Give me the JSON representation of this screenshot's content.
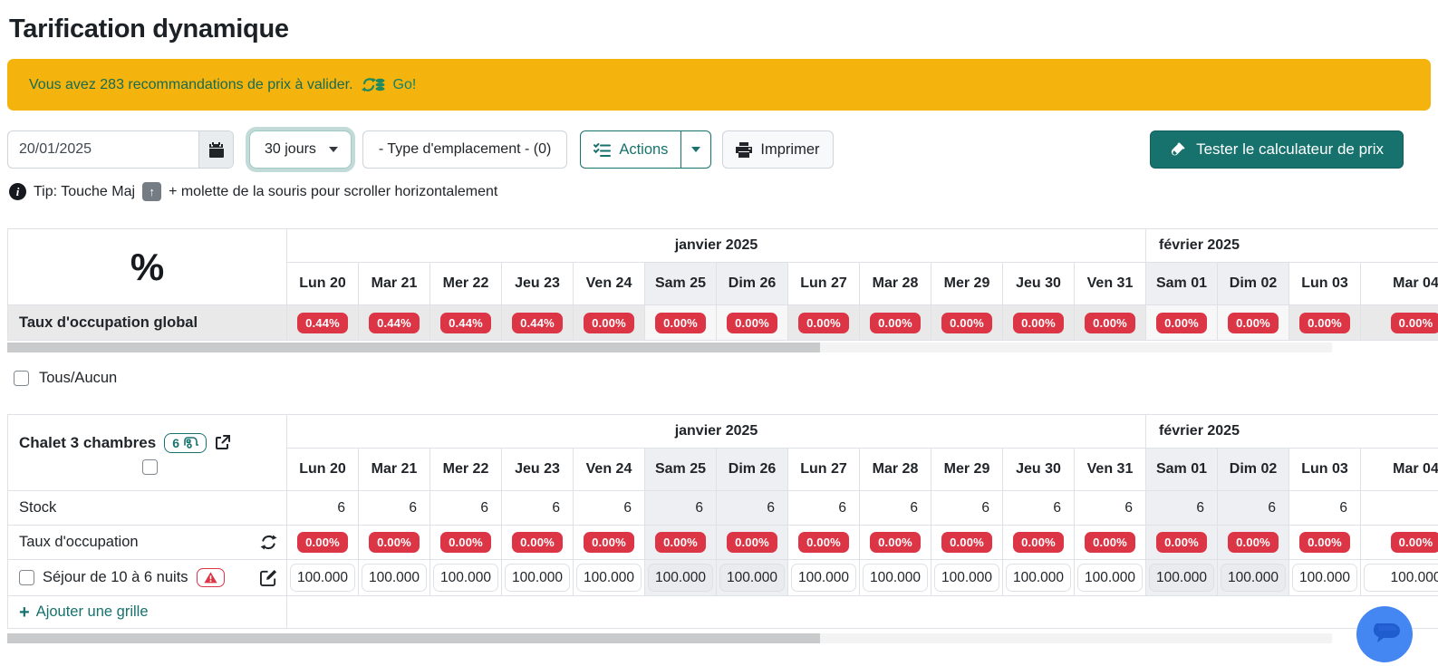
{
  "page": {
    "title": "Tarification dynamique"
  },
  "banner": {
    "text": "Vous avez 283 recommandations de prix à valider.",
    "link_label": "Go!"
  },
  "toolbar": {
    "date_value": "20/01/2025",
    "duration_value": "30 jours",
    "type_filter_label": "- Type d'emplacement - (0)",
    "actions_label": "Actions",
    "print_label": "Imprimer",
    "test_button_label": "Tester le calculateur de prix"
  },
  "tip": {
    "prefix": "Tip: Touche Maj",
    "key": "↑",
    "suffix": "+ molette de la souris pour scroller horizontalement"
  },
  "calendar": {
    "months": [
      {
        "label": "janvier 2025",
        "span": 12
      },
      {
        "label": "février 2025",
        "span": 4
      }
    ],
    "days": [
      {
        "label": "Lun 20",
        "weekend": false
      },
      {
        "label": "Mar 21",
        "weekend": false
      },
      {
        "label": "Mer 22",
        "weekend": false
      },
      {
        "label": "Jeu 23",
        "weekend": false
      },
      {
        "label": "Ven 24",
        "weekend": false
      },
      {
        "label": "Sam 25",
        "weekend": true
      },
      {
        "label": "Dim 26",
        "weekend": true
      },
      {
        "label": "Lun 27",
        "weekend": false
      },
      {
        "label": "Mar 28",
        "weekend": false
      },
      {
        "label": "Mer 29",
        "weekend": false
      },
      {
        "label": "Jeu 30",
        "weekend": false
      },
      {
        "label": "Ven 31",
        "weekend": false
      },
      {
        "label": "Sam 01",
        "weekend": true
      },
      {
        "label": "Dim 02",
        "weekend": true
      },
      {
        "label": "Lun 03",
        "weekend": false
      },
      {
        "label": "Mar 04",
        "weekend": false
      }
    ]
  },
  "global_table": {
    "row_label": "Taux d'occupation global",
    "values": [
      "0.44%",
      "0.44%",
      "0.44%",
      "0.44%",
      "0.00%",
      "0.00%",
      "0.00%",
      "0.00%",
      "0.00%",
      "0.00%",
      "0.00%",
      "0.00%",
      "0.00%",
      "0.00%",
      "0.00%",
      "0.00%"
    ]
  },
  "select_all_label": "Tous/Aucun",
  "chalet": {
    "title": "Chalet 3 chambres",
    "badge_count": "6",
    "stock_label": "Stock",
    "stock_values": [
      "6",
      "6",
      "6",
      "6",
      "6",
      "6",
      "6",
      "6",
      "6",
      "6",
      "6",
      "6",
      "6",
      "6",
      "6",
      "6"
    ],
    "occupancy_label": "Taux d'occupation",
    "occupancy_values": [
      "0.00%",
      "0.00%",
      "0.00%",
      "0.00%",
      "0.00%",
      "0.00%",
      "0.00%",
      "0.00%",
      "0.00%",
      "0.00%",
      "0.00%",
      "0.00%",
      "0.00%",
      "0.00%",
      "0.00%",
      "0.00%"
    ],
    "sejour_label": "Séjour de 10 à 6 nuits",
    "sejour_values": [
      "100.000",
      "100.000",
      "100.000",
      "100.000",
      "100.000",
      "100.000",
      "100.000",
      "100.000",
      "100.000",
      "100.000",
      "100.000",
      "100.000",
      "100.000",
      "100.000",
      "100.000",
      "100.000"
    ],
    "add_grid_label": "Ajouter une grille"
  },
  "colors": {
    "accent_teal": "#17726e",
    "danger_red": "#dc3545",
    "banner_yellow": "#f5b40d",
    "weekend_gray": "#edeff3",
    "chat_blue": "#4487f2"
  }
}
